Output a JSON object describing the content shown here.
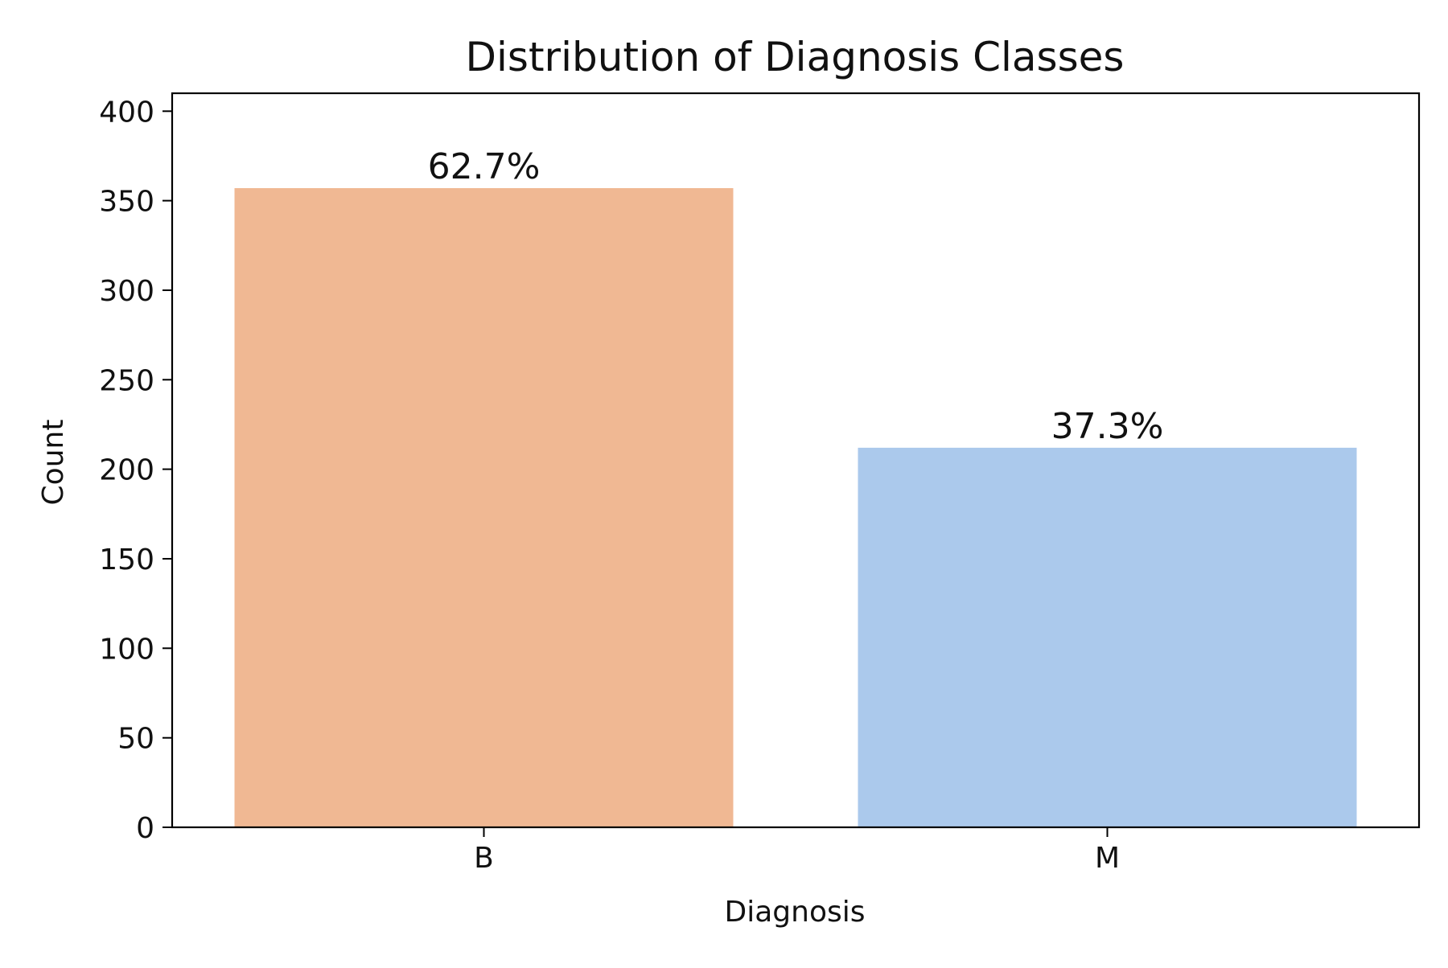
{
  "chart_data": {
    "type": "bar",
    "title": "Distribution of Diagnosis Classes",
    "xlabel": "Diagnosis",
    "ylabel": "Count",
    "categories": [
      "B",
      "M"
    ],
    "values": [
      357,
      212
    ],
    "data_labels": [
      "62.7%",
      "37.3%"
    ],
    "bar_colors": [
      "#F0B893",
      "#ABC9EC"
    ],
    "ylim": [
      0,
      410
    ],
    "yticks": [
      0,
      50,
      100,
      150,
      200,
      250,
      300,
      350,
      400
    ],
    "grid": false,
    "legend": "none"
  }
}
